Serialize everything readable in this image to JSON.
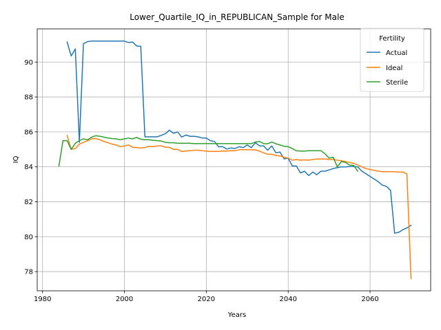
{
  "chart_data": {
    "type": "line",
    "title": "Lower_Quartile_IQ_in_REPUBLICAN_Sample for Male",
    "xlabel": "Years",
    "ylabel": "IQ",
    "xlim": [
      1978.7,
      2074.8
    ],
    "ylim": [
      76.9,
      91.9
    ],
    "xticks": [
      1980,
      2000,
      2020,
      2040,
      2060
    ],
    "yticks": [
      78,
      80,
      82,
      84,
      86,
      88,
      90
    ],
    "grid": true,
    "legend": {
      "title": "Fertility",
      "placement": "top-right"
    },
    "series": [
      {
        "name": "Actual",
        "color": "#1f77b4",
        "x": [
          1986,
          1987,
          1988,
          1989,
          1990,
          1991,
          1992,
          1993,
          1994,
          1995,
          1996,
          1997,
          1998,
          1999,
          2000,
          2001,
          2002,
          2003,
          2004,
          2005,
          2006,
          2007,
          2008,
          2009,
          2010,
          2011,
          2012,
          2013,
          2014,
          2015,
          2016,
          2017,
          2018,
          2019,
          2020,
          2021,
          2022,
          2023,
          2024,
          2025,
          2026,
          2027,
          2028,
          2029,
          2030,
          2031,
          2032,
          2033,
          2034,
          2035,
          2036,
          2037,
          2038,
          2039,
          2040,
          2041,
          2042,
          2043,
          2044,
          2045,
          2046,
          2047,
          2048,
          2049,
          2050,
          2051,
          2052,
          2053,
          2054,
          2055,
          2056,
          2057,
          2058,
          2059,
          2060,
          2061,
          2062,
          2063,
          2064,
          2065,
          2066,
          2067,
          2068,
          2069,
          2070
        ],
        "values": [
          91.15,
          90.35,
          90.75,
          85.4,
          91.05,
          91.17,
          91.2,
          91.2,
          91.2,
          91.2,
          91.2,
          91.2,
          91.2,
          91.2,
          91.2,
          91.12,
          91.15,
          90.92,
          90.9,
          85.72,
          85.72,
          85.72,
          85.72,
          85.8,
          85.9,
          86.1,
          85.92,
          86.0,
          85.7,
          85.82,
          85.75,
          85.75,
          85.72,
          85.65,
          85.65,
          85.5,
          85.45,
          85.15,
          85.15,
          85.02,
          85.08,
          85.05,
          85.15,
          85.1,
          85.25,
          85.1,
          85.38,
          85.2,
          85.2,
          84.95,
          85.2,
          84.8,
          84.85,
          84.45,
          84.5,
          84.05,
          84.05,
          83.65,
          83.75,
          83.5,
          83.7,
          83.55,
          83.75,
          83.75,
          83.82,
          83.9,
          83.95,
          84.0,
          84.0,
          84.02,
          84.02,
          84.0,
          83.75,
          83.6,
          83.45,
          83.3,
          83.15,
          82.95,
          82.88,
          82.65,
          80.2,
          80.25,
          80.4,
          80.5,
          80.65
        ]
      },
      {
        "name": "Ideal",
        "color": "#ff7f0e",
        "x": [
          1986,
          1987,
          1988,
          1989,
          1990,
          1991,
          1992,
          1993,
          1994,
          1995,
          1996,
          1997,
          1998,
          1999,
          2000,
          2001,
          2002,
          2003,
          2004,
          2005,
          2006,
          2007,
          2008,
          2009,
          2010,
          2011,
          2012,
          2013,
          2014,
          2015,
          2016,
          2017,
          2018,
          2019,
          2020,
          2021,
          2022,
          2023,
          2024,
          2025,
          2026,
          2027,
          2028,
          2029,
          2030,
          2031,
          2032,
          2033,
          2034,
          2035,
          2036,
          2037,
          2038,
          2039,
          2040,
          2041,
          2042,
          2043,
          2044,
          2045,
          2046,
          2047,
          2048,
          2049,
          2050,
          2051,
          2052,
          2053,
          2054,
          2055,
          2056,
          2057,
          2058,
          2059,
          2060,
          2061,
          2062,
          2063,
          2064,
          2065,
          2066,
          2067,
          2068,
          2069,
          2070
        ],
        "values": [
          85.8,
          85.0,
          85.05,
          85.3,
          85.4,
          85.5,
          85.6,
          85.62,
          85.55,
          85.45,
          85.38,
          85.3,
          85.25,
          85.15,
          85.2,
          85.25,
          85.12,
          85.1,
          85.08,
          85.1,
          85.18,
          85.15,
          85.2,
          85.2,
          85.12,
          85.12,
          85.0,
          85.0,
          84.88,
          84.9,
          84.92,
          84.95,
          84.95,
          84.92,
          84.9,
          84.88,
          84.88,
          84.88,
          84.9,
          84.9,
          84.92,
          84.92,
          84.98,
          84.98,
          84.98,
          84.97,
          84.97,
          84.9,
          84.8,
          84.72,
          84.72,
          84.65,
          84.62,
          84.55,
          84.5,
          84.38,
          84.42,
          84.38,
          84.4,
          84.38,
          84.42,
          84.45,
          84.45,
          84.45,
          84.42,
          84.42,
          84.38,
          84.35,
          84.3,
          84.25,
          84.2,
          84.1,
          84.0,
          83.9,
          83.85,
          83.8,
          83.75,
          83.72,
          83.72,
          83.72,
          83.72,
          83.7,
          83.7,
          83.6,
          77.6
        ]
      },
      {
        "name": "Sterile",
        "color": "#2ca02c",
        "x": [
          1984,
          1985,
          1986,
          1987,
          1988,
          1989,
          1990,
          1991,
          1992,
          1993,
          1994,
          1995,
          1996,
          1997,
          1998,
          1999,
          2000,
          2001,
          2002,
          2003,
          2004,
          2005,
          2006,
          2007,
          2008,
          2009,
          2010,
          2011,
          2012,
          2013,
          2014,
          2015,
          2016,
          2017,
          2018,
          2019,
          2020,
          2021,
          2022,
          2023,
          2024,
          2025,
          2026,
          2027,
          2028,
          2029,
          2030,
          2031,
          2032,
          2033,
          2034,
          2035,
          2036,
          2037,
          2038,
          2039,
          2040,
          2041,
          2042,
          2043,
          2044,
          2045,
          2046,
          2047,
          2048,
          2049,
          2050,
          2051,
          2052,
          2053,
          2054,
          2055,
          2056,
          2057
        ],
        "values": [
          84.05,
          85.5,
          85.5,
          85.0,
          85.35,
          85.5,
          85.6,
          85.55,
          85.7,
          85.78,
          85.75,
          85.7,
          85.65,
          85.62,
          85.6,
          85.55,
          85.6,
          85.65,
          85.6,
          85.68,
          85.58,
          85.55,
          85.55,
          85.52,
          85.5,
          85.48,
          85.4,
          85.38,
          85.38,
          85.35,
          85.35,
          85.35,
          85.35,
          85.33,
          85.33,
          85.33,
          85.33,
          85.33,
          85.33,
          85.33,
          85.33,
          85.33,
          85.33,
          85.33,
          85.33,
          85.33,
          85.33,
          85.33,
          85.42,
          85.45,
          85.33,
          85.32,
          85.42,
          85.32,
          85.25,
          85.18,
          85.15,
          85.05,
          84.92,
          84.9,
          84.9,
          84.92,
          84.92,
          84.92,
          84.92,
          84.75,
          84.5,
          84.55,
          84.0,
          84.3,
          84.25,
          84.1,
          84.08,
          83.75
        ]
      }
    ]
  }
}
